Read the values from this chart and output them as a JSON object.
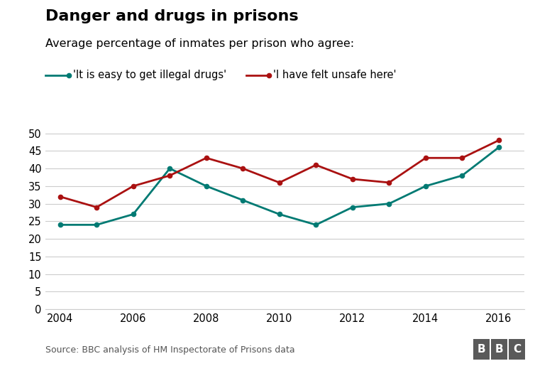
{
  "title": "Danger and drugs in prisons",
  "subtitle": "Average percentage of inmates per prison who agree:",
  "source": "Source: BBC analysis of HM Inspectorate of Prisons data",
  "years": [
    2004,
    2005,
    2006,
    2007,
    2008,
    2009,
    2010,
    2011,
    2012,
    2013,
    2014,
    2015,
    2016
  ],
  "drugs_line": {
    "label": "'It is easy to get illegal drugs'",
    "color": "#007a73",
    "values": [
      24,
      24,
      27,
      40,
      35,
      31,
      27,
      24,
      29,
      30,
      35,
      38,
      46
    ]
  },
  "unsafe_line": {
    "label": "'I have felt unsafe here'",
    "color": "#aa1111",
    "values": [
      32,
      29,
      35,
      38,
      43,
      40,
      36,
      41,
      37,
      36,
      43,
      43,
      48
    ]
  },
  "ylim": [
    0,
    52
  ],
  "yticks": [
    0,
    5,
    10,
    15,
    20,
    25,
    30,
    35,
    40,
    45,
    50
  ],
  "xticks": [
    2004,
    2006,
    2008,
    2010,
    2012,
    2014,
    2016
  ],
  "background_color": "#ffffff",
  "grid_color": "#cccccc",
  "title_fontsize": 16,
  "subtitle_fontsize": 11.5,
  "tick_fontsize": 10.5,
  "legend_fontsize": 10.5,
  "source_fontsize": 9,
  "bbc_text": "BBC",
  "marker": "o",
  "marker_size": 4.5,
  "line_width": 2.0
}
